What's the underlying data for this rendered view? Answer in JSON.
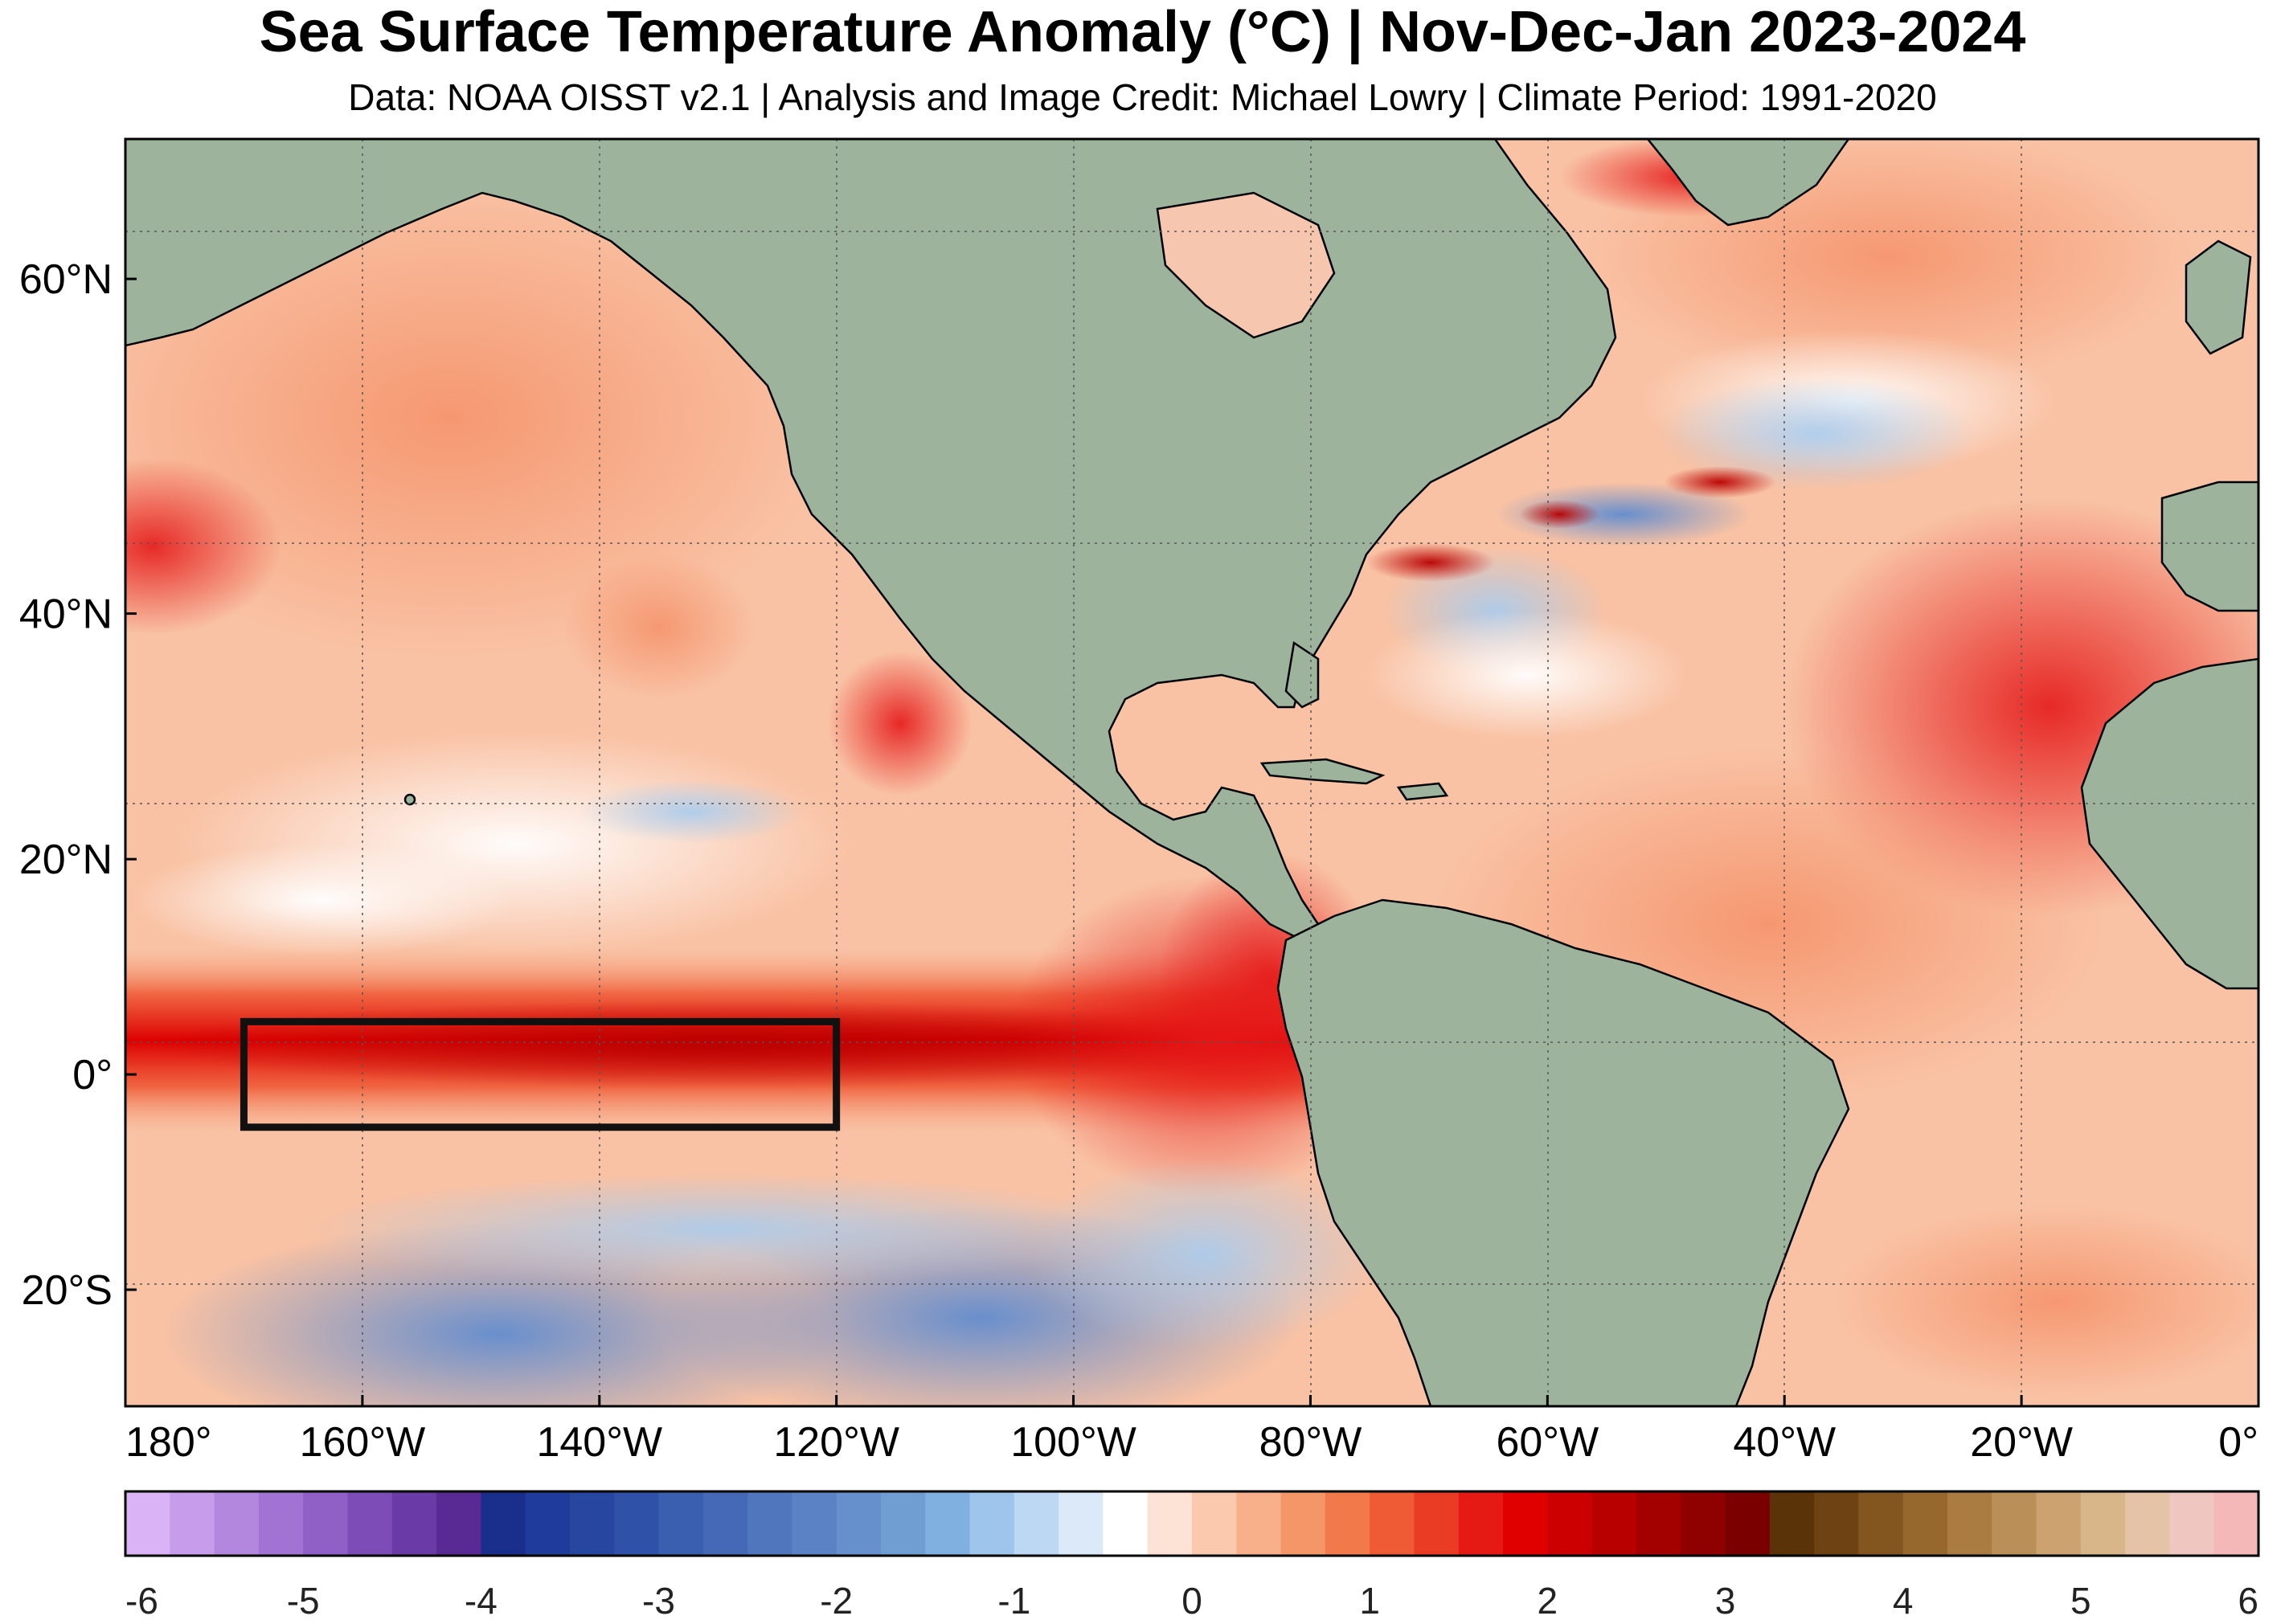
{
  "title": "Sea Surface Temperature Anomaly (°C) | Nov-Dec-Jan 2023-2024",
  "subtitle": "Data: NOAA OISST v2.1 | Analysis and Image Credit: Michael Lowry | Climate Period: 1991-2020",
  "map": {
    "lon_range": [
      -180,
      0
    ],
    "lat_range": [
      -30,
      66
    ],
    "land_color": "#9db39c",
    "highlight_box": {
      "lon": [
        -170,
        -120
      ],
      "lat": [
        -5,
        5
      ]
    },
    "x_ticks": [
      {
        "lon": -180,
        "label": "180°"
      },
      {
        "lon": -160,
        "label": "160°W"
      },
      {
        "lon": -140,
        "label": "140°W"
      },
      {
        "lon": -120,
        "label": "120°W"
      },
      {
        "lon": -100,
        "label": "100°W"
      },
      {
        "lon": -80,
        "label": "80°W"
      },
      {
        "lon": -60,
        "label": "60°W"
      },
      {
        "lon": -40,
        "label": "40°W"
      },
      {
        "lon": -20,
        "label": "20°W"
      },
      {
        "lon": 0,
        "label": "0°"
      }
    ],
    "y_ticks": [
      {
        "lat": 60,
        "label": "60°N"
      },
      {
        "lat": 40,
        "label": "40°N"
      },
      {
        "lat": 20,
        "label": "20°N"
      },
      {
        "lat": 0,
        "label": "0°"
      },
      {
        "lat": -20,
        "label": "20°S"
      }
    ]
  },
  "colorbar": {
    "min": -6,
    "max": 6,
    "colors": [
      "#d9b3f5",
      "#c79deb",
      "#b487de",
      "#a273d2",
      "#9060c6",
      "#7d4cb7",
      "#6a3aa6",
      "#5a2a94",
      "#1a2e8c",
      "#1f3c9c",
      "#27469f",
      "#2f52a8",
      "#3a5eb0",
      "#4569b6",
      "#5076bd",
      "#5a82c4",
      "#6590cb",
      "#709ed2",
      "#7fb0e0",
      "#9ec6ec",
      "#bcd8f3",
      "#dbe9f9",
      "#ffffff",
      "#fde3d5",
      "#fbc9ad",
      "#f8b08a",
      "#f59668",
      "#f27a4a",
      "#ee5b34",
      "#ea3b24",
      "#e61a14",
      "#e00000",
      "#cc0000",
      "#b80000",
      "#a30000",
      "#8f0000",
      "#7a0000",
      "#5a3308",
      "#6e4212",
      "#83551f",
      "#97682e",
      "#aa7c42",
      "#bb8f58",
      "#cba270",
      "#d9b58a",
      "#e4c3a6",
      "#efc6c0",
      "#f5b8b8"
    ],
    "tick_labels": [
      "-6",
      "-5",
      "-4",
      "-3",
      "-2",
      "-1",
      "0",
      "1",
      "2",
      "3",
      "4",
      "5",
      "6"
    ]
  }
}
